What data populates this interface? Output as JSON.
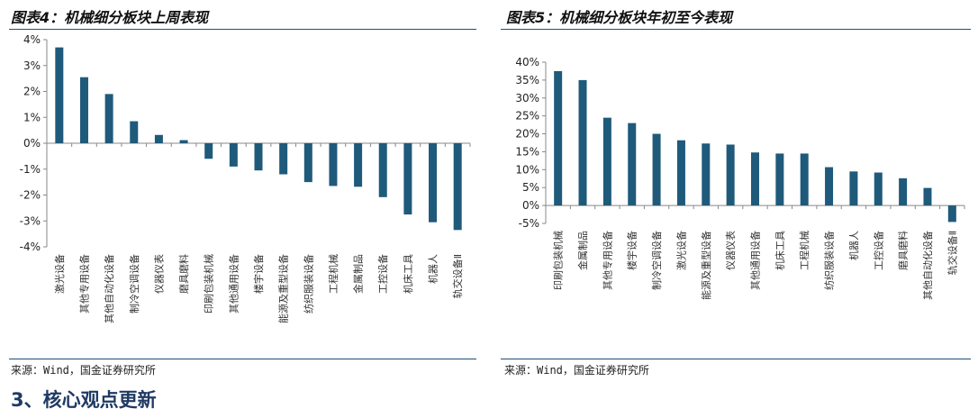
{
  "figures": [
    {
      "title": "图表4：机械细分板块上周表现",
      "source": "来源：Wind，国金证券研究所",
      "chart_data": {
        "type": "bar",
        "title": "",
        "xlabel": "",
        "ylabel": "",
        "ylim": [
          -4,
          4
        ],
        "yticks": [
          4,
          3,
          2,
          1,
          0,
          -1,
          -2,
          -3,
          -4
        ],
        "ytick_labels": [
          "4%",
          "3%",
          "2%",
          "1%",
          "0%",
          "-1%",
          "-2%",
          "-3%",
          "-4%"
        ],
        "grid": false,
        "bar_color": "#1f5a7a",
        "categories": [
          "激光设备",
          "其他专用设备",
          "其他自动化设备",
          "制冷空调设备",
          "仪器仪表",
          "磨具磨料",
          "印刷包装机械",
          "其他通用设备",
          "楼宇设备",
          "能源及重型设备",
          "纺织服装设备",
          "工程机械",
          "金属制品",
          "工控设备",
          "机床工具",
          "机器人",
          "轨交设备Ⅱ"
        ],
        "values": [
          3.7,
          2.55,
          1.9,
          0.85,
          0.32,
          0.12,
          -0.6,
          -0.9,
          -1.05,
          -1.2,
          -1.5,
          -1.65,
          -1.68,
          -2.08,
          -2.75,
          -3.05,
          -3.35
        ]
      }
    },
    {
      "title": "图表5：机械细分板块年初至今表现",
      "source": "来源：Wind，国金证券研究所",
      "chart_data": {
        "type": "bar",
        "title": "",
        "xlabel": "",
        "ylabel": "",
        "ylim": [
          -5,
          40
        ],
        "yticks": [
          40,
          35,
          30,
          25,
          20,
          15,
          10,
          5,
          0,
          -5
        ],
        "ytick_labels": [
          "40%",
          "35%",
          "30%",
          "25%",
          "20%",
          "15%",
          "10%",
          "5%",
          "0%",
          "-5%"
        ],
        "grid": false,
        "bar_color": "#1f5a7a",
        "categories": [
          "印刷包装机械",
          "金属制品",
          "其他专用设备",
          "楼宇设备",
          "制冷空调设备",
          "激光设备",
          "能源及重型设备",
          "仪器仪表",
          "其他通用设备",
          "机床工具",
          "工程机械",
          "纺织服装设备",
          "机器人",
          "工控设备",
          "磨具磨料",
          "其他自动化设备",
          "轨交设备Ⅱ"
        ],
        "values": [
          37.5,
          35.0,
          24.5,
          23.0,
          20.0,
          18.2,
          17.3,
          17.0,
          14.8,
          14.5,
          14.5,
          10.7,
          9.5,
          9.2,
          7.6,
          4.9,
          -4.6
        ]
      }
    }
  ],
  "section_heading": "3、核心观点更新"
}
